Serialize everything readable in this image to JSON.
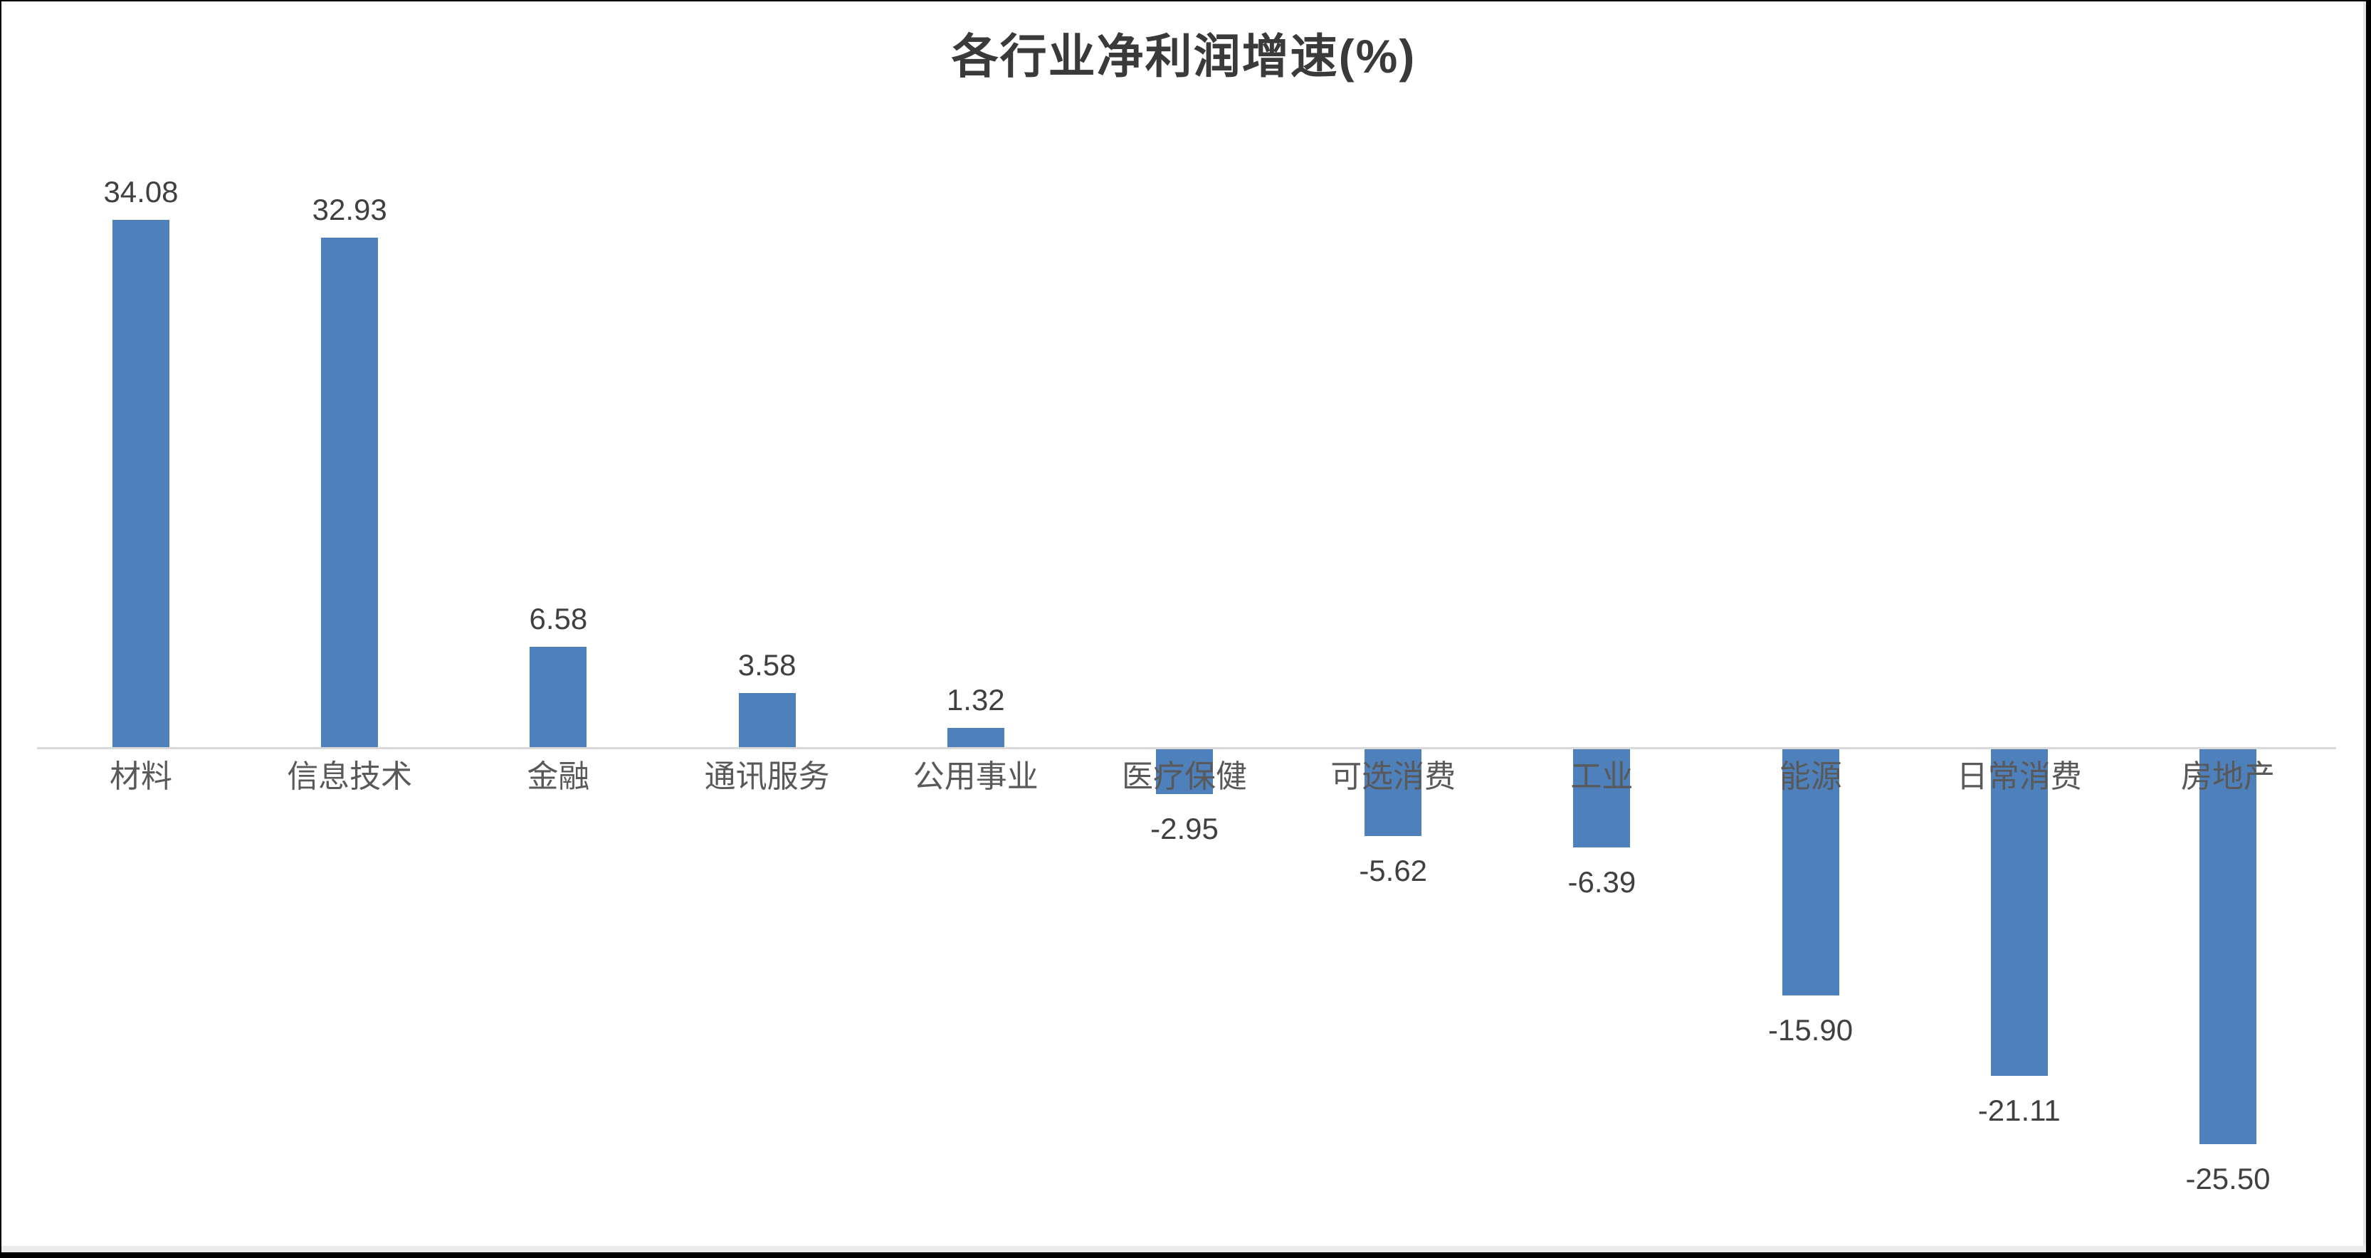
{
  "page": {
    "background": "#ffffff",
    "frame_color": "#000000",
    "edge_strip_color": "#ececec"
  },
  "chart_data": {
    "type": "bar",
    "title": "各行业净利润增速(%)",
    "categories": [
      "材料",
      "信息技术",
      "金融",
      "通讯服务",
      "公用事业",
      "医疗保健",
      "可选消费",
      "工业",
      "能源",
      "日常消费",
      "房地产"
    ],
    "values": [
      34.08,
      32.93,
      6.58,
      3.58,
      1.32,
      -2.95,
      -5.62,
      -6.39,
      -15.9,
      -21.11,
      -25.5
    ],
    "value_labels": [
      "34.08",
      "32.93",
      "6.58",
      "3.58",
      "1.32",
      "-2.95",
      "-5.62",
      "-6.39",
      "-15.90",
      "-21.11",
      "-25.50"
    ],
    "xlabel": "",
    "ylabel": "",
    "ylim": [
      -30,
      40
    ],
    "baseline": 0,
    "grid": false,
    "legend": false,
    "bar_color": "#4e80bc",
    "axis_line_color": "#d9d9d9",
    "title_color": "#3a3a3a",
    "value_label_color": "#404040",
    "category_label_color": "#595959"
  }
}
